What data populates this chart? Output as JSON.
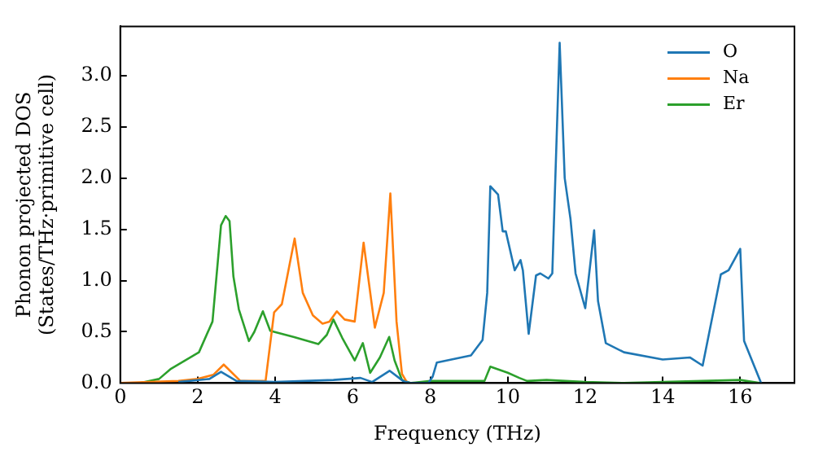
{
  "chart_data": {
    "type": "line",
    "xlabel": "Frequency (THz)",
    "ylabel": "Phonon projected DOS\n(States/THz·primitive cell)",
    "xlim": [
      0,
      17.4
    ],
    "ylim": [
      0,
      3.48
    ],
    "xticks": [
      0,
      2,
      4,
      6,
      8,
      10,
      12,
      14,
      16
    ],
    "yticks": [
      {
        "value": 0,
        "label": "0.0"
      },
      0.5,
      {
        "value": 1,
        "label": "1.0"
      },
      1.5,
      {
        "value": 2,
        "label": "2.0"
      },
      2.5,
      {
        "value": 3,
        "label": "3.0"
      }
    ],
    "legend": "top right",
    "grid": false,
    "marker": "none",
    "line_style": "solid",
    "series": [
      {
        "name": "O",
        "color": "#1f77b4",
        "x": [
          1.5,
          2.3,
          2.6,
          3.0,
          4.0,
          5.5,
          6.2,
          6.5,
          6.95,
          7.3,
          7.5,
          7.95,
          8.06,
          8.17,
          9.05,
          9.35,
          9.47,
          9.55,
          9.75,
          9.87,
          9.95,
          10.18,
          10.33,
          10.39,
          10.54,
          10.73,
          10.84,
          11.05,
          11.15,
          11.34,
          11.47,
          11.62,
          11.75,
          12.0,
          12.23,
          12.33,
          12.53,
          13.0,
          14.0,
          14.7,
          15.03,
          15.5,
          15.7,
          16.0,
          16.1,
          16.54
        ],
        "values": [
          0.01,
          0.04,
          0.11,
          0.02,
          0.01,
          0.03,
          0.05,
          0.01,
          0.12,
          0.02,
          0,
          0,
          0.06,
          0.2,
          0.27,
          0.42,
          0.88,
          1.92,
          1.84,
          1.48,
          1.48,
          1.1,
          1.2,
          1.1,
          0.48,
          1.05,
          1.07,
          1.02,
          1.07,
          3.32,
          2.0,
          1.6,
          1.07,
          0.73,
          1.49,
          0.8,
          0.39,
          0.3,
          0.23,
          0.25,
          0.17,
          1.06,
          1.1,
          1.31,
          0.41,
          0
        ]
      },
      {
        "name": "Na",
        "color": "#ff7f0e",
        "x": [
          0,
          1.5,
          2.0,
          2.4,
          2.67,
          3.1,
          3.75,
          3.97,
          4.17,
          4.5,
          4.71,
          4.97,
          5.22,
          5.4,
          5.59,
          5.79,
          6.05,
          6.28,
          6.57,
          6.8,
          6.97,
          7.13,
          7.27,
          7.41
        ],
        "values": [
          0,
          0.02,
          0.04,
          0.08,
          0.18,
          0.02,
          0.02,
          0.69,
          0.77,
          1.41,
          0.88,
          0.66,
          0.58,
          0.6,
          0.7,
          0.62,
          0.6,
          1.37,
          0.54,
          0.88,
          1.85,
          0.6,
          0.09,
          0
        ]
      },
      {
        "name": "Er",
        "color": "#2ca02c",
        "x": [
          0.5,
          1.0,
          1.31,
          2.03,
          2.38,
          2.6,
          2.72,
          2.82,
          2.92,
          3.06,
          3.32,
          3.46,
          3.68,
          3.87,
          4.47,
          5.11,
          5.33,
          5.5,
          5.73,
          6.05,
          6.26,
          6.45,
          6.7,
          6.94,
          7.08,
          7.27,
          7.5,
          8.0,
          9.4,
          9.55,
          10.0,
          10.3,
          10.5,
          11.0,
          12.0,
          13.0,
          15.0,
          16.0,
          16.5
        ],
        "values": [
          0,
          0.04,
          0.14,
          0.3,
          0.6,
          1.54,
          1.63,
          1.58,
          1.04,
          0.72,
          0.41,
          0.5,
          0.7,
          0.51,
          0.45,
          0.38,
          0.47,
          0.62,
          0.44,
          0.22,
          0.39,
          0.1,
          0.25,
          0.45,
          0.22,
          0.03,
          0,
          0.02,
          0.02,
          0.16,
          0.1,
          0.05,
          0.02,
          0.03,
          0.01,
          0,
          0.02,
          0.03,
          0
        ]
      }
    ]
  }
}
